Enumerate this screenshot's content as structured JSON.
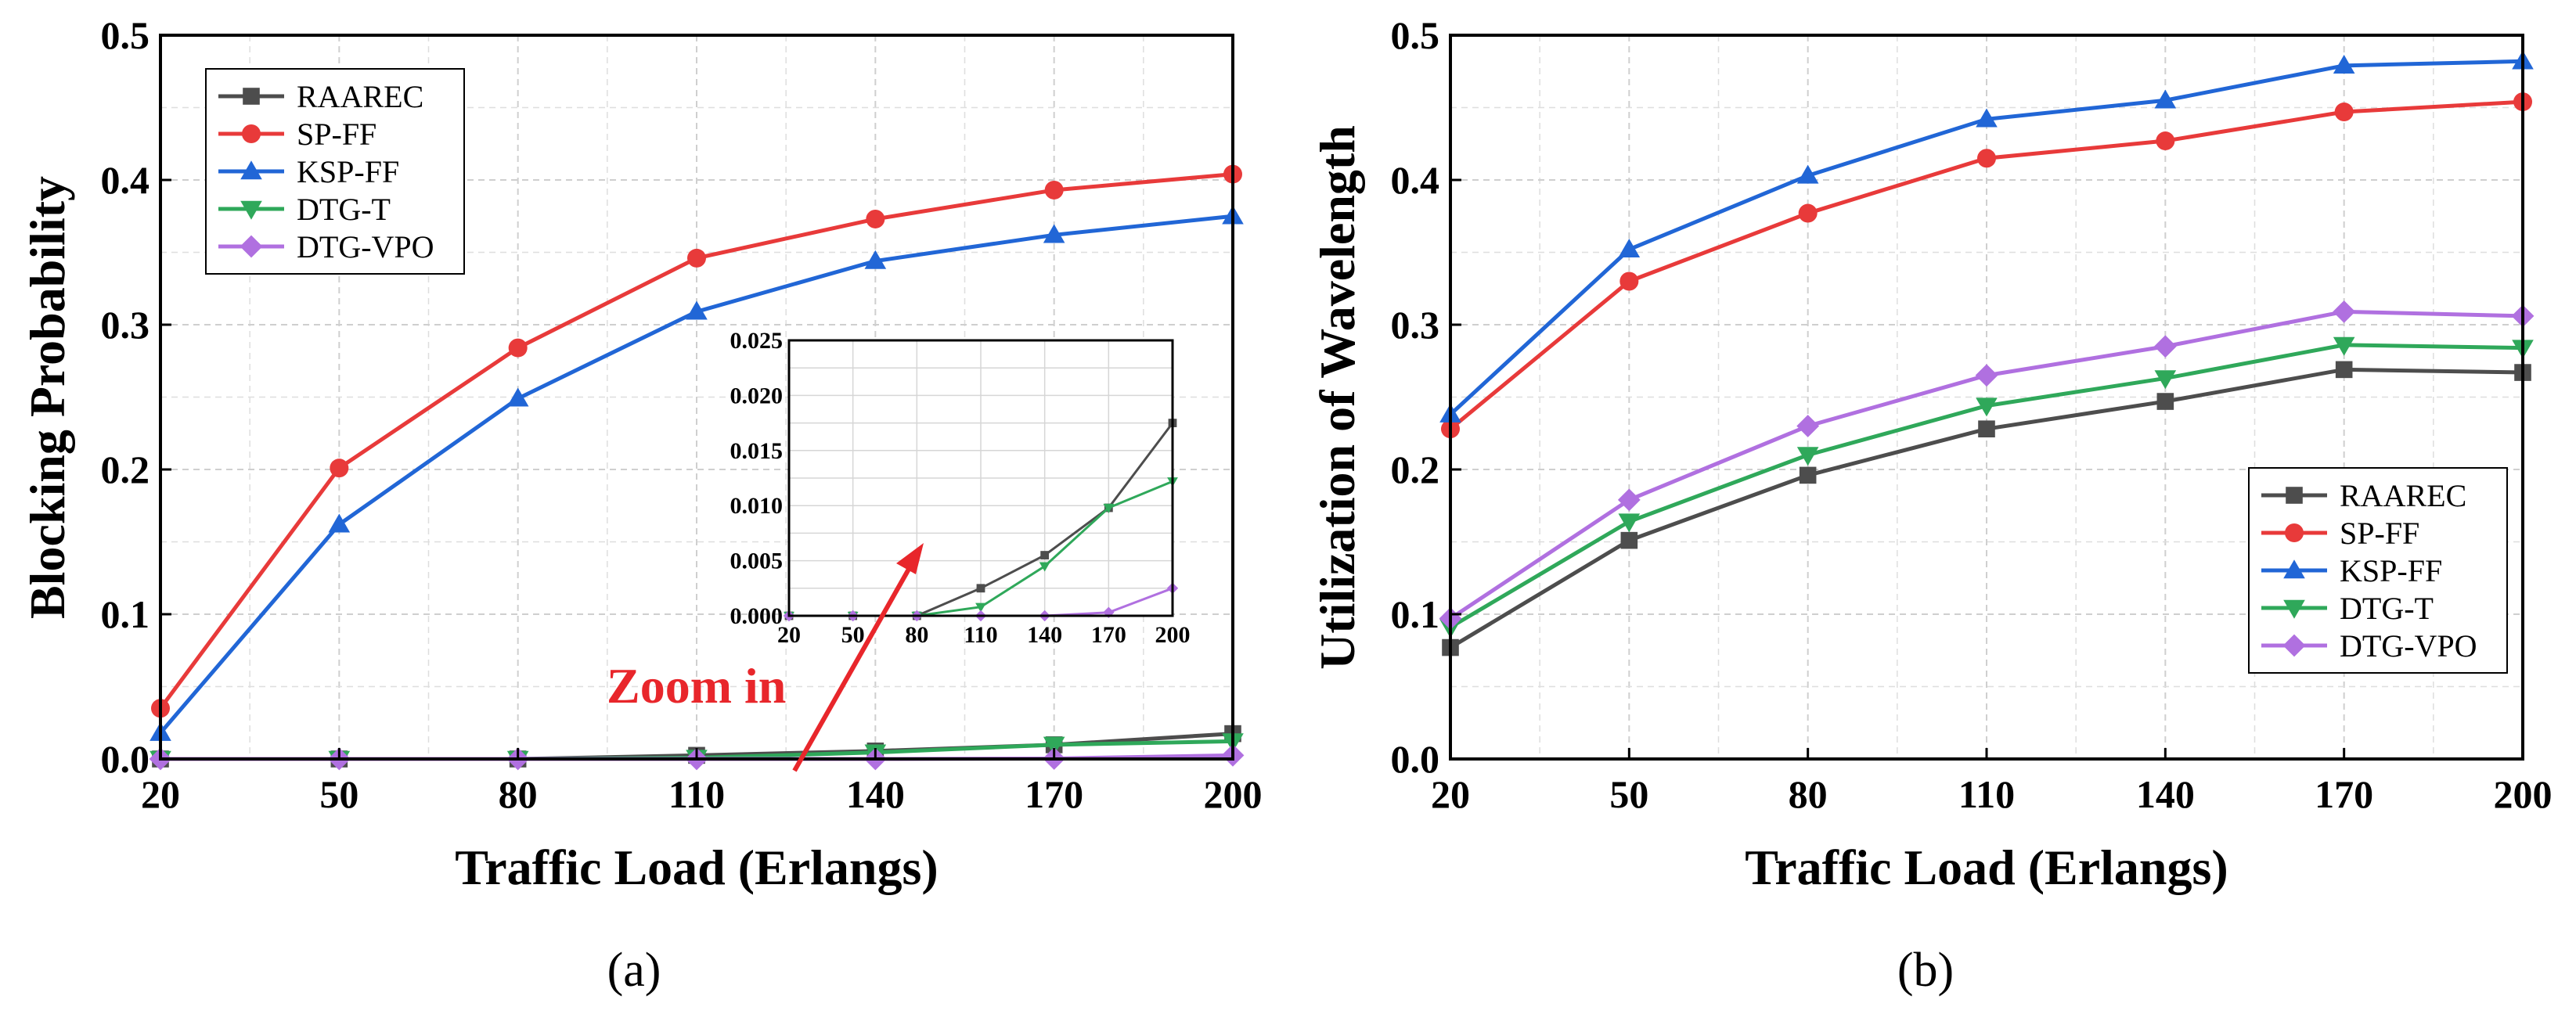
{
  "colors": {
    "RAAREC": "#4d4d4d",
    "SP-FF": "#e83a3a",
    "KSP-FF": "#2166d6",
    "DTG-T": "#2fa85a",
    "DTG-VPO": "#b070e0",
    "annotation": "#e8262b"
  },
  "chart_data": [
    {
      "id": "a",
      "type": "line",
      "caption": "(a)",
      "xlabel": "Traffic Load (Erlangs)",
      "ylabel": "Blocking Probability",
      "x": [
        20,
        50,
        80,
        110,
        140,
        170,
        200
      ],
      "x_tick_labels": [
        "20",
        "50",
        "80",
        "110",
        "140",
        "170",
        "200"
      ],
      "ylim": [
        0,
        0.5
      ],
      "y_tick_labels": [
        "0.0",
        "0.1",
        "0.2",
        "0.3",
        "0.4",
        "0.5"
      ],
      "grid": true,
      "legend": "top-left",
      "series": [
        {
          "name": "RAAREC",
          "marker": "square",
          "values": [
            0,
            0,
            0,
            0.0025,
            0.0055,
            0.0098,
            0.0175
          ]
        },
        {
          "name": "SP-FF",
          "marker": "circle",
          "values": [
            0.035,
            0.201,
            0.284,
            0.346,
            0.373,
            0.393,
            0.404
          ]
        },
        {
          "name": "KSP-FF",
          "marker": "triangle-up",
          "values": [
            0.018,
            0.162,
            0.249,
            0.309,
            0.344,
            0.362,
            0.375
          ]
        },
        {
          "name": "DTG-T",
          "marker": "triangle-down",
          "values": [
            0,
            0,
            0,
            0.0008,
            0.0045,
            0.0098,
            0.0122
          ]
        },
        {
          "name": "DTG-VPO",
          "marker": "diamond",
          "values": [
            0,
            0,
            0,
            0,
            0,
            0.0003,
            0.0025
          ]
        }
      ],
      "annotation": "Zoom in",
      "inset": {
        "x": [
          20,
          50,
          80,
          110,
          140,
          170,
          200
        ],
        "x_tick_labels": [
          "20",
          "50",
          "80",
          "110",
          "140",
          "170",
          "200"
        ],
        "ylim": [
          0,
          0.025
        ],
        "y_tick_labels": [
          "0.000",
          "0.005",
          "0.010",
          "0.015",
          "0.020",
          "0.025"
        ],
        "series_names": [
          "RAAREC",
          "DTG-T",
          "DTG-VPO"
        ]
      }
    },
    {
      "id": "b",
      "type": "line",
      "caption": "(b)",
      "xlabel": "Traffic Load (Erlangs)",
      "ylabel": "Utilization of Wavelength",
      "x": [
        20,
        50,
        80,
        110,
        140,
        170,
        200
      ],
      "x_tick_labels": [
        "20",
        "50",
        "80",
        "110",
        "140",
        "170",
        "200"
      ],
      "ylim": [
        0,
        0.5
      ],
      "y_tick_labels": [
        "0.0",
        "0.1",
        "0.2",
        "0.3",
        "0.4",
        "0.5"
      ],
      "grid": true,
      "legend": "bottom-right",
      "series": [
        {
          "name": "RAAREC",
          "marker": "square",
          "values": [
            0.077,
            0.151,
            0.196,
            0.228,
            0.247,
            0.269,
            0.267
          ]
        },
        {
          "name": "SP-FF",
          "marker": "circle",
          "values": [
            0.228,
            0.33,
            0.377,
            0.415,
            0.427,
            0.447,
            0.454
          ]
        },
        {
          "name": "KSP-FF",
          "marker": "triangle-up",
          "values": [
            0.238,
            0.352,
            0.403,
            0.442,
            0.455,
            0.479,
            0.482
          ]
        },
        {
          "name": "DTG-T",
          "marker": "triangle-down",
          "values": [
            0.091,
            0.164,
            0.21,
            0.244,
            0.263,
            0.286,
            0.284
          ]
        },
        {
          "name": "DTG-VPO",
          "marker": "diamond",
          "values": [
            0.097,
            0.179,
            0.23,
            0.265,
            0.285,
            0.309,
            0.306
          ]
        }
      ]
    }
  ]
}
